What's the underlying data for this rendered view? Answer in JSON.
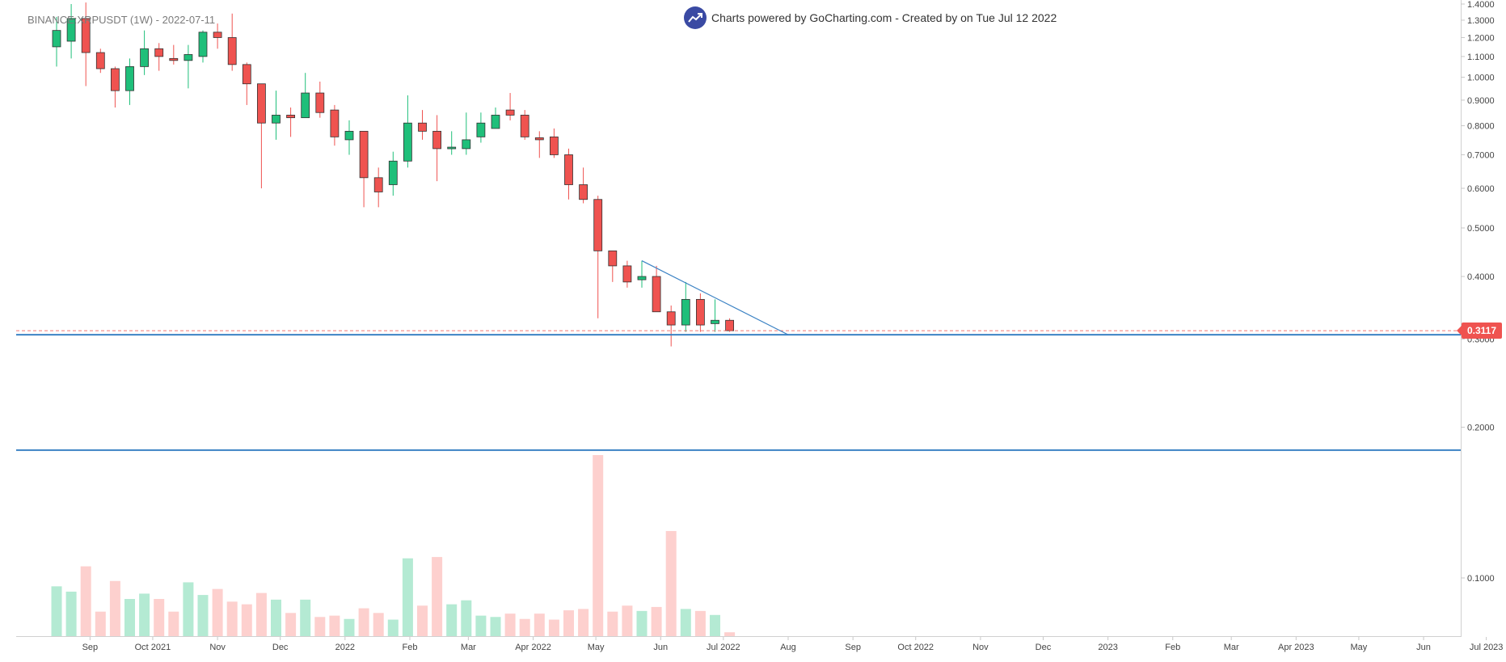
{
  "header": {
    "symbol_label": "BINANCE:XRPUSDT (1W) - 2022-07-11",
    "credit_text": "Charts powered by GoCharting.com - Created by  on Tue Jul 12 2022",
    "logo_icon": "trend-up-icon"
  },
  "price_badge": "0.3117",
  "colors": {
    "up": "#1fbf7a",
    "down": "#ef5350",
    "up_volume": "#b4ead3",
    "down_volume": "#fdd0ce",
    "support_line": "#3b82c4",
    "trendline": "#3b82c4",
    "last_price_line": "#ef5350"
  },
  "chart_data": {
    "type": "candlestick",
    "title": "BINANCE:XRPUSDT (1W) - 2022-07-11",
    "y_scale": "log",
    "y_range": [
      0.075,
      1.4
    ],
    "y_ticks": [
      "1.4000",
      "1.3000",
      "1.2000",
      "1.1000",
      "1.0000",
      "0.9000",
      "0.8000",
      "0.7000",
      "0.6000",
      "0.5000",
      "0.4000",
      "0.3000",
      "0.2000",
      "0.1000"
    ],
    "x_ticks": [
      "Sep",
      "Oct 2021",
      "Nov",
      "Dec",
      "2022",
      "Feb",
      "Mar",
      "Apr 2022",
      "May",
      "Jun",
      "Jul 2022",
      "Aug",
      "Sep",
      "Oct 2022",
      "Nov",
      "Dec",
      "2023",
      "Feb",
      "Mar",
      "Apr 2023",
      "May",
      "Jun",
      "Jul 2023"
    ],
    "last_price": 0.3117,
    "candles": [
      {
        "date": "2021-08-16",
        "o": 1.15,
        "h": 1.32,
        "l": 1.05,
        "c": 1.24
      },
      {
        "date": "2021-08-23",
        "o": 1.18,
        "h": 1.4,
        "l": 1.09,
        "c": 1.31
      },
      {
        "date": "2021-08-30",
        "o": 1.31,
        "h": 1.41,
        "l": 0.96,
        "c": 1.12
      },
      {
        "date": "2021-09-06",
        "o": 1.12,
        "h": 1.14,
        "l": 1.02,
        "c": 1.04
      },
      {
        "date": "2021-09-13",
        "o": 1.04,
        "h": 1.05,
        "l": 0.87,
        "c": 0.94
      },
      {
        "date": "2021-09-20",
        "o": 0.94,
        "h": 1.09,
        "l": 0.88,
        "c": 1.05
      },
      {
        "date": "2021-09-27",
        "o": 1.05,
        "h": 1.24,
        "l": 1.01,
        "c": 1.14
      },
      {
        "date": "2021-10-04",
        "o": 1.14,
        "h": 1.17,
        "l": 1.03,
        "c": 1.1
      },
      {
        "date": "2021-10-11",
        "o": 1.09,
        "h": 1.16,
        "l": 1.06,
        "c": 1.08
      },
      {
        "date": "2021-10-18",
        "o": 1.08,
        "h": 1.16,
        "l": 0.95,
        "c": 1.11
      },
      {
        "date": "2021-10-25",
        "o": 1.1,
        "h": 1.24,
        "l": 1.07,
        "c": 1.23
      },
      {
        "date": "2021-11-01",
        "o": 1.23,
        "h": 1.28,
        "l": 1.14,
        "c": 1.2
      },
      {
        "date": "2021-11-08",
        "o": 1.2,
        "h": 1.34,
        "l": 1.03,
        "c": 1.06
      },
      {
        "date": "2021-11-15",
        "o": 1.06,
        "h": 1.07,
        "l": 0.88,
        "c": 0.97
      },
      {
        "date": "2021-11-22",
        "o": 0.97,
        "h": 0.97,
        "l": 0.6,
        "c": 0.81
      },
      {
        "date": "2021-11-29",
        "o": 0.81,
        "h": 0.94,
        "l": 0.75,
        "c": 0.84
      },
      {
        "date": "2021-12-06",
        "o": 0.84,
        "h": 0.87,
        "l": 0.76,
        "c": 0.83
      },
      {
        "date": "2021-12-13",
        "o": 0.83,
        "h": 1.02,
        "l": 0.83,
        "c": 0.93
      },
      {
        "date": "2021-12-20",
        "o": 0.93,
        "h": 0.98,
        "l": 0.83,
        "c": 0.85
      },
      {
        "date": "2021-12-27",
        "o": 0.86,
        "h": 0.88,
        "l": 0.73,
        "c": 0.76
      },
      {
        "date": "2022-01-03",
        "o": 0.75,
        "h": 0.82,
        "l": 0.7,
        "c": 0.78
      },
      {
        "date": "2022-01-10",
        "o": 0.78,
        "h": 0.78,
        "l": 0.55,
        "c": 0.63
      },
      {
        "date": "2022-01-17",
        "o": 0.63,
        "h": 0.66,
        "l": 0.55,
        "c": 0.59
      },
      {
        "date": "2022-01-24",
        "o": 0.61,
        "h": 0.71,
        "l": 0.58,
        "c": 0.68
      },
      {
        "date": "2022-01-31",
        "o": 0.68,
        "h": 0.92,
        "l": 0.66,
        "c": 0.81
      },
      {
        "date": "2022-02-07",
        "o": 0.81,
        "h": 0.86,
        "l": 0.75,
        "c": 0.78
      },
      {
        "date": "2022-02-14",
        "o": 0.78,
        "h": 0.84,
        "l": 0.62,
        "c": 0.72
      },
      {
        "date": "2022-02-21",
        "o": 0.72,
        "h": 0.78,
        "l": 0.7,
        "c": 0.725
      },
      {
        "date": "2022-02-28",
        "o": 0.72,
        "h": 0.85,
        "l": 0.7,
        "c": 0.75
      },
      {
        "date": "2022-03-07",
        "o": 0.76,
        "h": 0.85,
        "l": 0.74,
        "c": 0.81
      },
      {
        "date": "2022-03-14",
        "o": 0.79,
        "h": 0.87,
        "l": 0.79,
        "c": 0.84
      },
      {
        "date": "2022-03-21",
        "o": 0.86,
        "h": 0.93,
        "l": 0.82,
        "c": 0.84
      },
      {
        "date": "2022-03-28",
        "o": 0.84,
        "h": 0.86,
        "l": 0.75,
        "c": 0.76
      },
      {
        "date": "2022-04-04",
        "o": 0.757,
        "h": 0.78,
        "l": 0.69,
        "c": 0.75
      },
      {
        "date": "2022-04-11",
        "o": 0.76,
        "h": 0.79,
        "l": 0.69,
        "c": 0.7
      },
      {
        "date": "2022-04-18",
        "o": 0.7,
        "h": 0.72,
        "l": 0.57,
        "c": 0.61
      },
      {
        "date": "2022-04-25",
        "o": 0.61,
        "h": 0.66,
        "l": 0.56,
        "c": 0.57
      },
      {
        "date": "2022-05-02",
        "o": 0.57,
        "h": 0.58,
        "l": 0.33,
        "c": 0.45
      },
      {
        "date": "2022-05-09",
        "o": 0.45,
        "h": 0.45,
        "l": 0.39,
        "c": 0.42
      },
      {
        "date": "2022-05-16",
        "o": 0.42,
        "h": 0.43,
        "l": 0.38,
        "c": 0.39
      },
      {
        "date": "2022-05-23",
        "o": 0.394,
        "h": 0.43,
        "l": 0.38,
        "c": 0.4
      },
      {
        "date": "2022-05-30",
        "o": 0.4,
        "h": 0.42,
        "l": 0.34,
        "c": 0.34
      },
      {
        "date": "2022-06-06",
        "o": 0.34,
        "h": 0.35,
        "l": 0.29,
        "c": 0.32
      },
      {
        "date": "2022-06-13",
        "o": 0.32,
        "h": 0.39,
        "l": 0.31,
        "c": 0.36
      },
      {
        "date": "2022-06-20",
        "o": 0.36,
        "h": 0.37,
        "l": 0.31,
        "c": 0.32
      },
      {
        "date": "2022-06-27",
        "o": 0.322,
        "h": 0.36,
        "l": 0.31,
        "c": 0.327
      },
      {
        "date": "2022-07-04",
        "o": 0.327,
        "h": 0.33,
        "l": 0.31,
        "c": 0.3117
      }
    ],
    "volumes": [
      76,
      68,
      106,
      38,
      84,
      57,
      65,
      57,
      38,
      82,
      63,
      72,
      53,
      49,
      66,
      56,
      36,
      56,
      30,
      32,
      27,
      43,
      36,
      26,
      118,
      47,
      120,
      49,
      55,
      32,
      30,
      35,
      27,
      35,
      26,
      40,
      42,
      273,
      38,
      47,
      39,
      45,
      159,
      42,
      39,
      33,
      7
    ],
    "support_levels": [
      0.306,
      0.18
    ],
    "trendline": [
      {
        "date": "2022-05-23",
        "price": 0.43
      },
      {
        "date": "2022-08-01",
        "price": 0.306
      }
    ]
  }
}
